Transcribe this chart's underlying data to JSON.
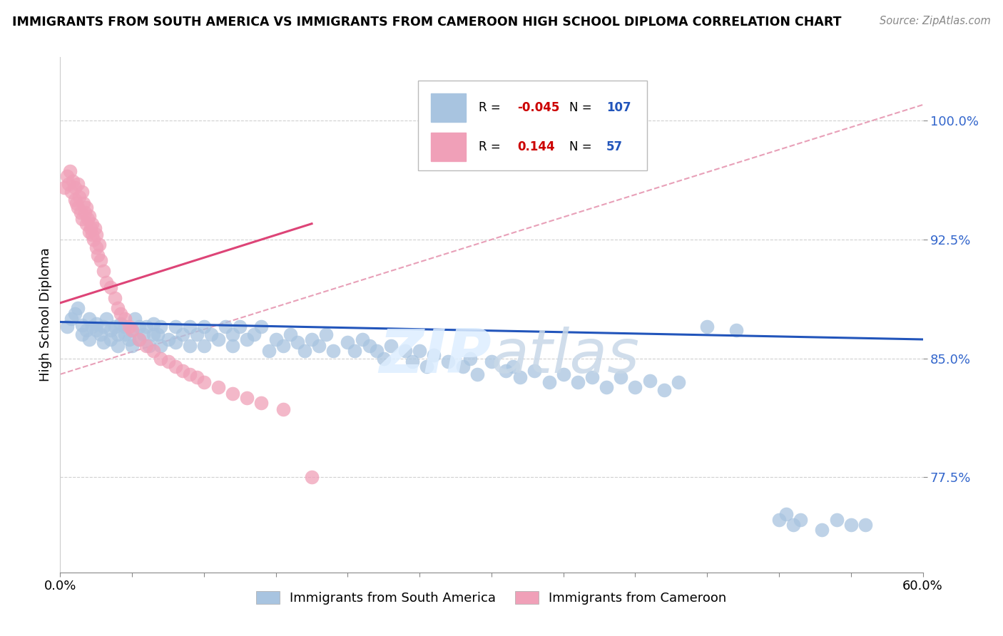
{
  "title": "IMMIGRANTS FROM SOUTH AMERICA VS IMMIGRANTS FROM CAMEROON HIGH SCHOOL DIPLOMA CORRELATION CHART",
  "source": "Source: ZipAtlas.com",
  "ylabel": "High School Diploma",
  "y_ticks": [
    0.775,
    0.85,
    0.925,
    1.0
  ],
  "y_tick_labels": [
    "77.5%",
    "85.0%",
    "92.5%",
    "100.0%"
  ],
  "x_lim": [
    0.0,
    0.6
  ],
  "y_lim": [
    0.715,
    1.04
  ],
  "blue_R": -0.045,
  "blue_N": 107,
  "pink_R": 0.144,
  "pink_N": 57,
  "blue_color": "#a8c4e0",
  "pink_color": "#f0a0b8",
  "blue_line_color": "#2255bb",
  "pink_line_color": "#dd4477",
  "dashed_line_color": "#e8a0b8",
  "legend_label_blue": "Immigrants from South America",
  "legend_label_pink": "Immigrants from Cameroon",
  "blue_scatter_x": [
    0.005,
    0.008,
    0.01,
    0.012,
    0.015,
    0.015,
    0.018,
    0.02,
    0.02,
    0.022,
    0.025,
    0.025,
    0.028,
    0.03,
    0.03,
    0.032,
    0.035,
    0.035,
    0.038,
    0.04,
    0.04,
    0.042,
    0.045,
    0.045,
    0.048,
    0.05,
    0.05,
    0.052,
    0.055,
    0.055,
    0.058,
    0.06,
    0.062,
    0.065,
    0.065,
    0.068,
    0.07,
    0.07,
    0.075,
    0.08,
    0.08,
    0.085,
    0.09,
    0.09,
    0.095,
    0.1,
    0.1,
    0.105,
    0.11,
    0.115,
    0.12,
    0.12,
    0.125,
    0.13,
    0.135,
    0.14,
    0.145,
    0.15,
    0.155,
    0.16,
    0.165,
    0.17,
    0.175,
    0.18,
    0.185,
    0.19,
    0.2,
    0.205,
    0.21,
    0.215,
    0.22,
    0.225,
    0.23,
    0.24,
    0.245,
    0.25,
    0.255,
    0.26,
    0.27,
    0.28,
    0.285,
    0.29,
    0.3,
    0.31,
    0.315,
    0.32,
    0.33,
    0.34,
    0.35,
    0.36,
    0.37,
    0.38,
    0.39,
    0.4,
    0.41,
    0.42,
    0.43,
    0.45,
    0.47,
    0.5,
    0.505,
    0.51,
    0.515,
    0.53,
    0.54,
    0.55,
    0.56
  ],
  "blue_scatter_y": [
    0.87,
    0.875,
    0.878,
    0.882,
    0.871,
    0.865,
    0.868,
    0.875,
    0.862,
    0.87,
    0.868,
    0.872,
    0.865,
    0.87,
    0.86,
    0.875,
    0.868,
    0.862,
    0.87,
    0.865,
    0.858,
    0.872,
    0.865,
    0.87,
    0.862,
    0.868,
    0.858,
    0.875,
    0.862,
    0.87,
    0.865,
    0.87,
    0.858,
    0.865,
    0.872,
    0.865,
    0.87,
    0.858,
    0.862,
    0.87,
    0.86,
    0.865,
    0.87,
    0.858,
    0.865,
    0.87,
    0.858,
    0.865,
    0.862,
    0.87,
    0.865,
    0.858,
    0.87,
    0.862,
    0.865,
    0.87,
    0.855,
    0.862,
    0.858,
    0.865,
    0.86,
    0.855,
    0.862,
    0.858,
    0.865,
    0.855,
    0.86,
    0.855,
    0.862,
    0.858,
    0.855,
    0.85,
    0.858,
    0.855,
    0.848,
    0.855,
    0.845,
    0.852,
    0.848,
    0.845,
    0.85,
    0.84,
    0.848,
    0.842,
    0.845,
    0.838,
    0.842,
    0.835,
    0.84,
    0.835,
    0.838,
    0.832,
    0.838,
    0.832,
    0.836,
    0.83,
    0.835,
    0.87,
    0.868,
    0.748,
    0.752,
    0.745,
    0.748,
    0.742,
    0.748,
    0.745,
    0.745
  ],
  "pink_scatter_x": [
    0.003,
    0.005,
    0.006,
    0.007,
    0.008,
    0.009,
    0.01,
    0.01,
    0.011,
    0.012,
    0.012,
    0.013,
    0.014,
    0.015,
    0.015,
    0.016,
    0.017,
    0.018,
    0.018,
    0.019,
    0.02,
    0.02,
    0.021,
    0.022,
    0.022,
    0.023,
    0.024,
    0.025,
    0.025,
    0.026,
    0.027,
    0.028,
    0.03,
    0.032,
    0.035,
    0.038,
    0.04,
    0.042,
    0.045,
    0.048,
    0.05,
    0.055,
    0.06,
    0.065,
    0.07,
    0.075,
    0.08,
    0.085,
    0.09,
    0.095,
    0.1,
    0.11,
    0.12,
    0.13,
    0.14,
    0.155,
    0.175
  ],
  "pink_scatter_y": [
    0.958,
    0.965,
    0.96,
    0.968,
    0.955,
    0.962,
    0.958,
    0.95,
    0.948,
    0.96,
    0.945,
    0.952,
    0.942,
    0.955,
    0.938,
    0.948,
    0.942,
    0.935,
    0.945,
    0.938,
    0.93,
    0.94,
    0.932,
    0.928,
    0.935,
    0.925,
    0.932,
    0.92,
    0.928,
    0.915,
    0.922,
    0.912,
    0.905,
    0.898,
    0.895,
    0.888,
    0.882,
    0.878,
    0.875,
    0.87,
    0.868,
    0.862,
    0.858,
    0.855,
    0.85,
    0.848,
    0.845,
    0.842,
    0.84,
    0.838,
    0.835,
    0.832,
    0.828,
    0.825,
    0.822,
    0.818,
    0.775
  ]
}
